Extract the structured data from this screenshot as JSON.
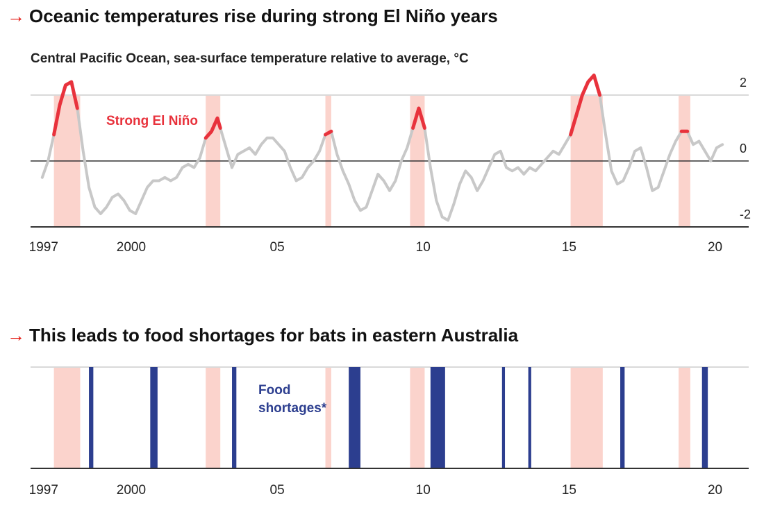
{
  "headline_1": "Oceanic temperatures rise during strong El Niño years",
  "headline_2": "This leads to food shortages for bats in eastern Australia",
  "arrow": "→",
  "chart_data": [
    {
      "type": "line",
      "title": "Oceanic temperatures rise during strong El Niño years",
      "subtitle": "Central Pacific Ocean, sea-surface temperature relative to average, °C",
      "x_ticks": [
        1997,
        2000,
        2005,
        2010,
        2015,
        2020
      ],
      "x_tick_labels": [
        "1997",
        "2000",
        "05",
        "10",
        "15",
        "20"
      ],
      "y_ticks": [
        2,
        0,
        -2
      ],
      "y_tick_labels": [
        "2",
        "0",
        "-2"
      ],
      "ylim": [
        -2,
        2.5
      ],
      "xlim": [
        1996.6,
        2021.2
      ],
      "annotation": "Strong El Niño",
      "colors": {
        "line": "#c8c8c8",
        "highlight": "#e8323c",
        "band": "#fbd3cc",
        "zero": "#333333",
        "grid": "#d9d9d9"
      },
      "strong_el_nino_periods": [
        [
          1997.4,
          1998.3
        ],
        [
          2002.6,
          2003.1
        ],
        [
          2006.7,
          2006.9
        ],
        [
          2009.6,
          2010.1
        ],
        [
          2015.1,
          2016.2
        ],
        [
          2018.8,
          2019.2
        ]
      ],
      "series": [
        {
          "values": [
            [
              1997.0,
              -0.5
            ],
            [
              1997.2,
              0.0
            ],
            [
              1997.4,
              0.8
            ],
            [
              1997.6,
              1.7
            ],
            [
              1997.8,
              2.3
            ],
            [
              1998.0,
              2.4
            ],
            [
              1998.2,
              1.6
            ],
            [
              1998.4,
              0.3
            ],
            [
              1998.6,
              -0.8
            ],
            [
              1998.8,
              -1.4
            ],
            [
              1999.0,
              -1.6
            ],
            [
              1999.2,
              -1.4
            ],
            [
              1999.4,
              -1.1
            ],
            [
              1999.6,
              -1.0
            ],
            [
              1999.8,
              -1.2
            ],
            [
              2000.0,
              -1.5
            ],
            [
              2000.2,
              -1.6
            ],
            [
              2000.4,
              -1.2
            ],
            [
              2000.6,
              -0.8
            ],
            [
              2000.8,
              -0.6
            ],
            [
              2001.0,
              -0.6
            ],
            [
              2001.2,
              -0.5
            ],
            [
              2001.4,
              -0.6
            ],
            [
              2001.6,
              -0.5
            ],
            [
              2001.8,
              -0.2
            ],
            [
              2002.0,
              -0.1
            ],
            [
              2002.2,
              -0.2
            ],
            [
              2002.4,
              0.1
            ],
            [
              2002.6,
              0.7
            ],
            [
              2002.8,
              0.9
            ],
            [
              2003.0,
              1.3
            ],
            [
              2003.1,
              1.0
            ],
            [
              2003.3,
              0.4
            ],
            [
              2003.5,
              -0.2
            ],
            [
              2003.7,
              0.2
            ],
            [
              2003.9,
              0.3
            ],
            [
              2004.1,
              0.4
            ],
            [
              2004.3,
              0.2
            ],
            [
              2004.5,
              0.5
            ],
            [
              2004.7,
              0.7
            ],
            [
              2004.9,
              0.7
            ],
            [
              2005.1,
              0.5
            ],
            [
              2005.3,
              0.3
            ],
            [
              2005.5,
              -0.2
            ],
            [
              2005.7,
              -0.6
            ],
            [
              2005.9,
              -0.5
            ],
            [
              2006.1,
              -0.2
            ],
            [
              2006.3,
              0.0
            ],
            [
              2006.5,
              0.3
            ],
            [
              2006.7,
              0.8
            ],
            [
              2006.9,
              0.9
            ],
            [
              2007.1,
              0.2
            ],
            [
              2007.3,
              -0.3
            ],
            [
              2007.5,
              -0.7
            ],
            [
              2007.7,
              -1.2
            ],
            [
              2007.9,
              -1.5
            ],
            [
              2008.1,
              -1.4
            ],
            [
              2008.3,
              -0.9
            ],
            [
              2008.5,
              -0.4
            ],
            [
              2008.7,
              -0.6
            ],
            [
              2008.9,
              -0.9
            ],
            [
              2009.1,
              -0.6
            ],
            [
              2009.3,
              0.0
            ],
            [
              2009.5,
              0.4
            ],
            [
              2009.7,
              1.0
            ],
            [
              2009.9,
              1.6
            ],
            [
              2010.1,
              1.0
            ],
            [
              2010.3,
              -0.2
            ],
            [
              2010.5,
              -1.2
            ],
            [
              2010.7,
              -1.7
            ],
            [
              2010.9,
              -1.8
            ],
            [
              2011.1,
              -1.3
            ],
            [
              2011.3,
              -0.7
            ],
            [
              2011.5,
              -0.3
            ],
            [
              2011.7,
              -0.5
            ],
            [
              2011.9,
              -0.9
            ],
            [
              2012.1,
              -0.6
            ],
            [
              2012.3,
              -0.2
            ],
            [
              2012.5,
              0.2
            ],
            [
              2012.7,
              0.3
            ],
            [
              2012.9,
              -0.2
            ],
            [
              2013.1,
              -0.3
            ],
            [
              2013.3,
              -0.2
            ],
            [
              2013.5,
              -0.4
            ],
            [
              2013.7,
              -0.2
            ],
            [
              2013.9,
              -0.3
            ],
            [
              2014.1,
              -0.1
            ],
            [
              2014.3,
              0.1
            ],
            [
              2014.5,
              0.3
            ],
            [
              2014.7,
              0.2
            ],
            [
              2014.9,
              0.5
            ],
            [
              2015.1,
              0.8
            ],
            [
              2015.3,
              1.4
            ],
            [
              2015.5,
              2.0
            ],
            [
              2015.7,
              2.4
            ],
            [
              2015.9,
              2.6
            ],
            [
              2016.1,
              2.0
            ],
            [
              2016.3,
              0.8
            ],
            [
              2016.5,
              -0.3
            ],
            [
              2016.7,
              -0.7
            ],
            [
              2016.9,
              -0.6
            ],
            [
              2017.1,
              -0.2
            ],
            [
              2017.3,
              0.3
            ],
            [
              2017.5,
              0.4
            ],
            [
              2017.7,
              -0.2
            ],
            [
              2017.9,
              -0.9
            ],
            [
              2018.1,
              -0.8
            ],
            [
              2018.3,
              -0.3
            ],
            [
              2018.5,
              0.2
            ],
            [
              2018.7,
              0.6
            ],
            [
              2018.9,
              0.9
            ],
            [
              2019.1,
              0.9
            ],
            [
              2019.3,
              0.5
            ],
            [
              2019.5,
              0.6
            ],
            [
              2019.7,
              0.3
            ],
            [
              2019.9,
              0.0
            ],
            [
              2020.1,
              0.4
            ],
            [
              2020.3,
              0.5
            ]
          ]
        }
      ]
    },
    {
      "type": "bar",
      "title": "This leads to food shortages for bats in eastern Australia",
      "annotation": "Food shortages*",
      "x_ticks": [
        1997,
        2000,
        2005,
        2010,
        2015,
        2020
      ],
      "x_tick_labels": [
        "1997",
        "2000",
        "05",
        "10",
        "15",
        "20"
      ],
      "xlim": [
        1996.6,
        2021.2
      ],
      "colors": {
        "bar": "#2c3e8f",
        "band": "#fbd3cc",
        "baseline": "#333333",
        "top_line": "#d9d9d9",
        "annotation": "#2c3e8f"
      },
      "strong_el_nino_periods": [
        [
          1997.4,
          1998.3
        ],
        [
          2002.6,
          2003.1
        ],
        [
          2006.7,
          2006.9
        ],
        [
          2009.6,
          2010.1
        ],
        [
          2015.1,
          2016.2
        ],
        [
          2018.8,
          2019.2
        ]
      ],
      "food_shortage_periods": [
        [
          1998.6,
          1998.75
        ],
        [
          2000.7,
          2000.95
        ],
        [
          2003.5,
          2003.65
        ],
        [
          2007.5,
          2007.9
        ],
        [
          2010.3,
          2010.8
        ],
        [
          2012.75,
          2012.85
        ],
        [
          2013.65,
          2013.75
        ],
        [
          2016.8,
          2016.95
        ],
        [
          2019.6,
          2019.8
        ]
      ]
    }
  ]
}
